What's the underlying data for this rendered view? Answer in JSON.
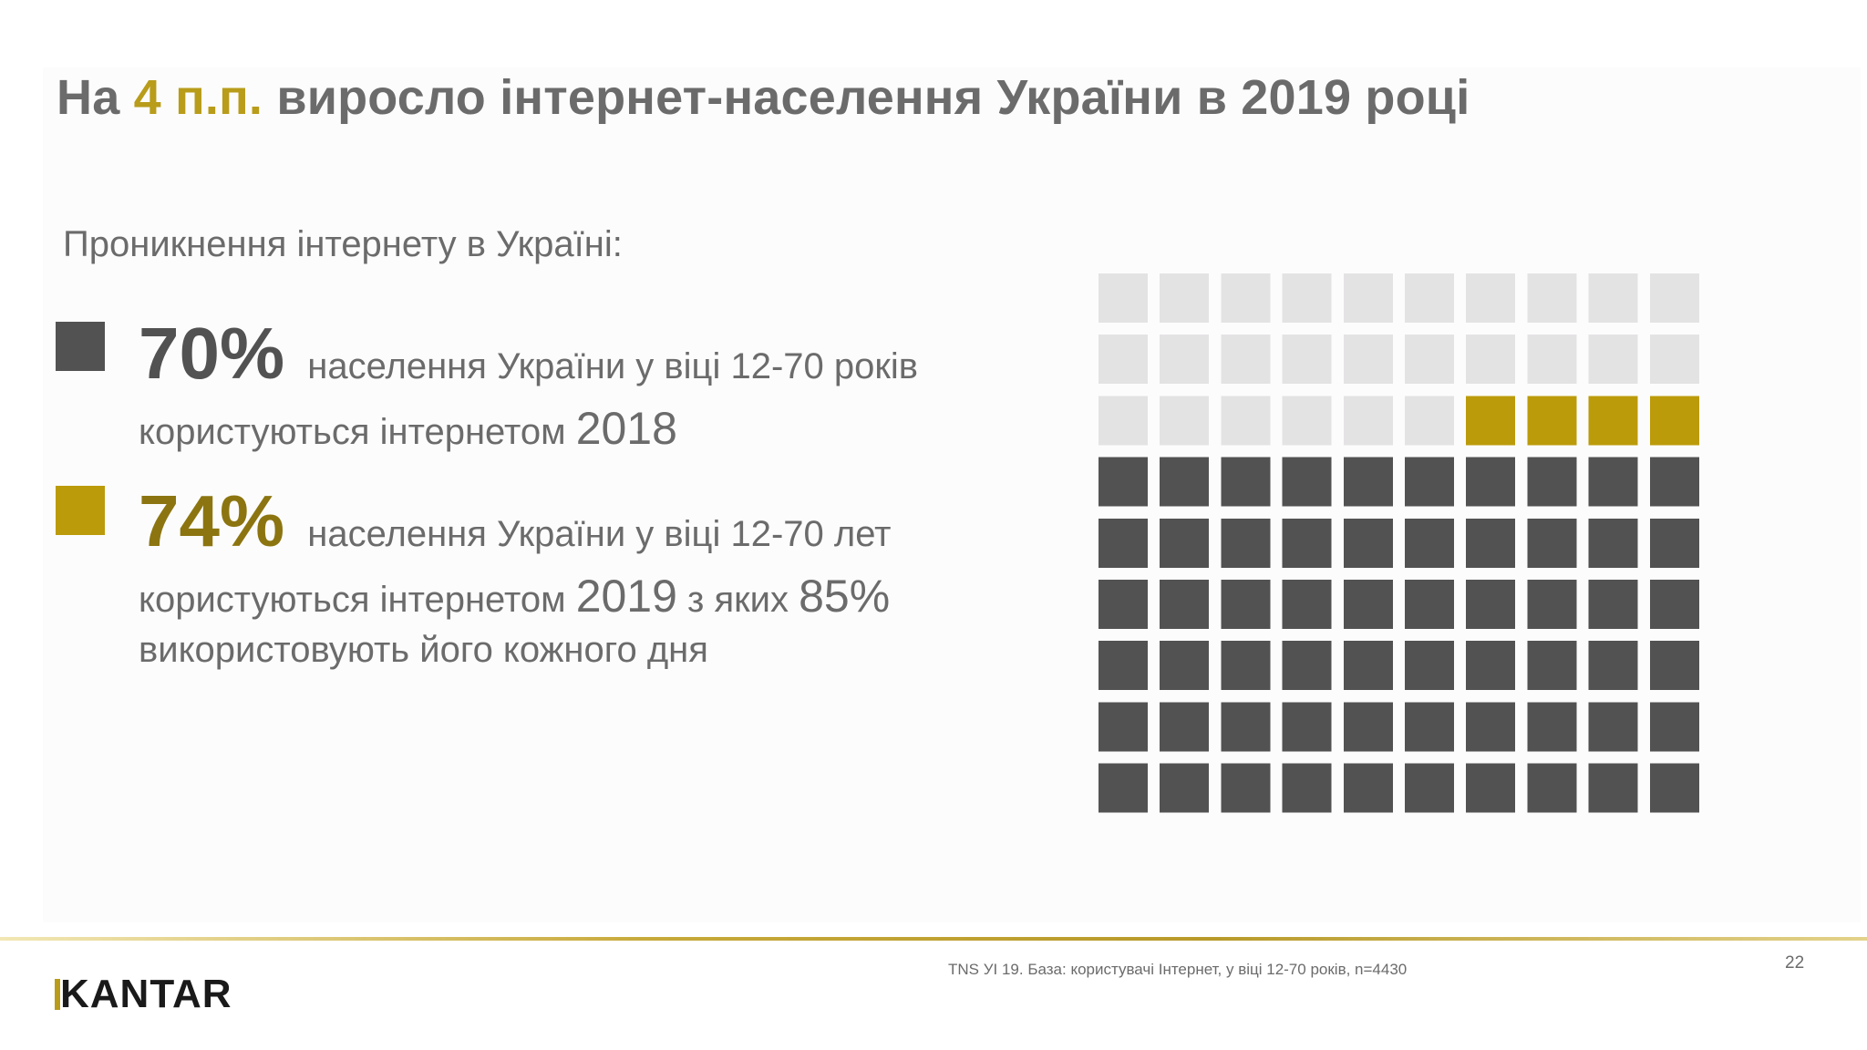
{
  "slide": {
    "title_prefix": "На ",
    "title_accent": "4 п.п.",
    "title_suffix": " виросло інтернет-населення України в 2019 році",
    "subtitle": "Проникнення інтернету в Україні:"
  },
  "colors": {
    "dark": "#535253",
    "gold": "#bc9b0a",
    "light": "#e4e3e4",
    "text": "#6b6b6b",
    "accent": "#b89c1a"
  },
  "legend": [
    {
      "value": "70%",
      "line1": "населення України у віці 12-70 років",
      "line2_prefix": "користуються інтернетом ",
      "year": "2018",
      "color": "#535253"
    },
    {
      "value": "74%",
      "line1": "населення України у віці 12-70 лет",
      "line2_prefix": "користуються інтернетом ",
      "year": "2019",
      "line2_mid": " з яких ",
      "share": "85%",
      "line3": "використовують його кожного дня",
      "color": "#bc9b0a"
    }
  ],
  "chart_data": {
    "type": "waffle",
    "rows": 10,
    "cols": 10,
    "total": 100,
    "series": [
      {
        "name": "2018",
        "value": 70,
        "color": "#535253"
      },
      {
        "name": "2019",
        "value": 4,
        "color": "#bc9b0a"
      },
      {
        "value": 26,
        "color": "#e4e3e4"
      }
    ]
  },
  "footer": {
    "logo_rest": "ANTAR",
    "logo_first": "K",
    "source": "TNS УІ 19. База: користувачі  Інтернет, у віці 12-70 років, n=4430",
    "page_number": "22"
  }
}
